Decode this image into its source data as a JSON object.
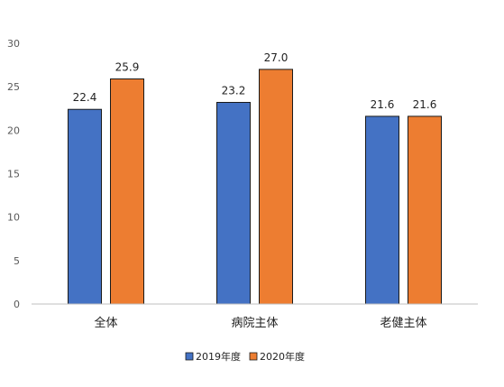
{
  "chart_data": {
    "type": "bar",
    "title": "",
    "xlabel": "",
    "ylabel": "",
    "ylim": [
      0,
      30
    ],
    "yticks": [
      0,
      5,
      10,
      15,
      20,
      25,
      30
    ],
    "grid": false,
    "legend_position": "bottom",
    "categories": [
      "全体",
      "病院主体",
      "老健主体"
    ],
    "series": [
      {
        "name": "2019年度",
        "color": "#4472C4",
        "values": [
          22.4,
          23.2,
          21.6
        ],
        "labels": [
          "22.4",
          "23.2",
          "21.6"
        ]
      },
      {
        "name": "2020年度",
        "color": "#ED7D31",
        "values": [
          25.9,
          27.0,
          21.6
        ],
        "labels": [
          "25.9",
          "27.0",
          "21.6"
        ]
      }
    ]
  }
}
